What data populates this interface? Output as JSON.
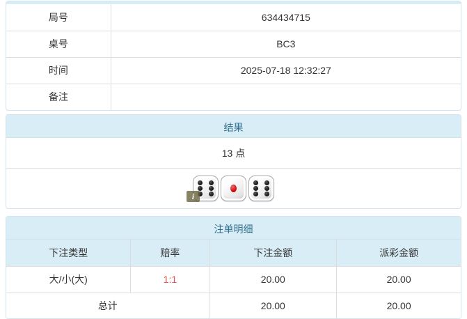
{
  "colors": {
    "heading_bg": "#d9edf7",
    "heading_text": "#31708f",
    "cell_border": "#dddddd",
    "panel_border": "#d2e4ee",
    "body_text": "#333333",
    "odds_red": "#d9534f",
    "pip_black": "#111111",
    "pip_red": "#cc0000",
    "info_badge_bg": "#68603a"
  },
  "info_table": {
    "rows": [
      {
        "label": "局号",
        "value": "634434715"
      },
      {
        "label": "桌号",
        "value": "BC3"
      },
      {
        "label": "时间",
        "value": "2025-07-18 12:32:27"
      },
      {
        "label": "备注",
        "value": ""
      }
    ]
  },
  "result_panel": {
    "title": "结果",
    "points": "13 点",
    "dice": [
      6,
      1,
      6
    ],
    "info_badge": "i"
  },
  "bets_panel": {
    "title": "注单明细",
    "columns": [
      "下注类型",
      "赔率",
      "下注金额",
      "派彩金额"
    ],
    "rows": [
      {
        "type": "大/小(大)",
        "odds": "1:1",
        "bet": "20.00",
        "payout": "20.00"
      }
    ],
    "total": {
      "label": "总计",
      "bet": "20.00",
      "payout": "20.00"
    }
  }
}
